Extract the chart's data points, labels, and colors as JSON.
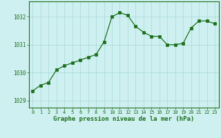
{
  "x": [
    0,
    1,
    2,
    3,
    4,
    5,
    6,
    7,
    8,
    9,
    10,
    11,
    12,
    13,
    14,
    15,
    16,
    17,
    18,
    19,
    20,
    21,
    22,
    23
  ],
  "y": [
    1029.35,
    1029.55,
    1029.65,
    1030.1,
    1030.25,
    1030.35,
    1030.45,
    1030.55,
    1030.65,
    1031.1,
    1032.0,
    1032.15,
    1032.05,
    1031.65,
    1031.45,
    1031.3,
    1031.3,
    1031.0,
    1031.0,
    1031.05,
    1031.6,
    1031.85,
    1031.85,
    1031.75
  ],
  "line_color": "#1a6e1a",
  "marker_color": "#1a6e1a",
  "bg_color": "#cff0f0",
  "grid_color": "#a8d8d8",
  "xlabel": "Graphe pression niveau de la mer (hPa)",
  "xlabel_color": "#1a6e1a",
  "tick_color": "#1a6e1a",
  "ylim": [
    1028.75,
    1032.55
  ],
  "yticks": [
    1029,
    1030,
    1031,
    1032
  ],
  "xticks": [
    0,
    1,
    2,
    3,
    4,
    5,
    6,
    7,
    8,
    9,
    10,
    11,
    12,
    13,
    14,
    15,
    16,
    17,
    18,
    19,
    20,
    21,
    22,
    23
  ],
  "border_color": "#1a6e1a"
}
